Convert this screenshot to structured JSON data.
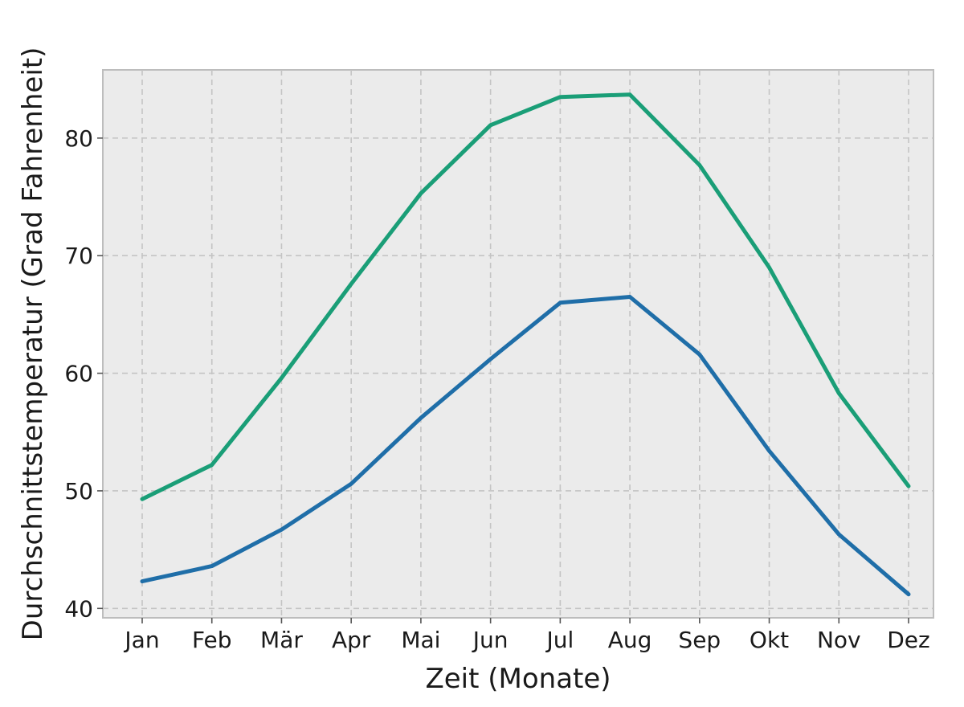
{
  "chart_data": {
    "type": "line",
    "title": "",
    "xlabel": "Zeit (Monate)",
    "ylabel": "Durchschnittstemperatur (Grad Fahrenheit)",
    "categories": [
      "Jan",
      "Feb",
      "Mär",
      "Apr",
      "Mai",
      "Jun",
      "Jul",
      "Aug",
      "Sep",
      "Okt",
      "Nov",
      "Dez"
    ],
    "ylim": [
      39.2,
      85.8
    ],
    "yticks": [
      40,
      50,
      60,
      70,
      80
    ],
    "grid": true,
    "series": [
      {
        "color": "#1a9e77",
        "values": [
          49.3,
          52.2,
          59.6,
          67.6,
          75.3,
          81.1,
          83.5,
          83.7,
          77.7,
          69.0,
          58.3,
          50.4
        ]
      },
      {
        "color": "#1f6ea8",
        "values": [
          42.3,
          43.6,
          46.7,
          50.6,
          56.2,
          61.2,
          66.0,
          66.5,
          61.6,
          53.4,
          46.3,
          41.2
        ]
      }
    ],
    "colors": {
      "plot_background": "#ebebeb",
      "frame": "#bdbdbd"
    }
  }
}
